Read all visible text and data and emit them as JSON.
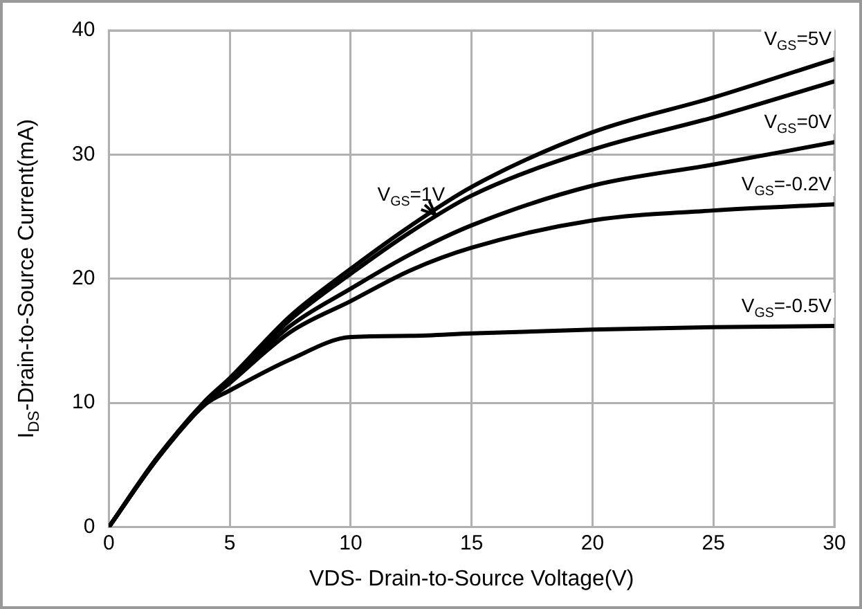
{
  "chart_data": {
    "type": "line",
    "xlabel": "VDS- Drain-to-Source Voltage(V)",
    "ylabel": "I$_{DS}$-Drain-to-Source Current(mA)",
    "x": [
      0,
      2,
      4,
      5,
      7.5,
      10,
      12.5,
      15,
      20,
      25,
      30
    ],
    "series": [
      {
        "name": "V$_{GS}$=5V",
        "color": "#000000",
        "values": [
          0,
          5.6,
          10.2,
          12,
          17,
          20.8,
          24.3,
          27.4,
          31.8,
          34.6,
          37.7
        ]
      },
      {
        "name": "V$_{GS}$=1V",
        "color": "#000000",
        "values": [
          0,
          5.6,
          10.1,
          11.9,
          16.7,
          20.4,
          23.8,
          26.7,
          30.4,
          33,
          35.9
        ]
      },
      {
        "name": "V$_{GS}$=0V",
        "color": "#000000",
        "values": [
          0,
          5.5,
          10,
          11.7,
          16.2,
          19.2,
          22,
          24.3,
          27.5,
          29.2,
          31
        ]
      },
      {
        "name": "V$_{GS}$=-0.2V",
        "color": "#000000",
        "values": [
          0,
          5.5,
          10,
          11.6,
          15.7,
          18.2,
          20.7,
          22.5,
          24.7,
          25.5,
          26
        ]
      },
      {
        "name": "V$_{GS}$=-0.5V",
        "color": "#000000",
        "values": [
          0,
          5.5,
          9.9,
          11,
          13.5,
          15.3,
          15.4,
          15.6,
          15.9,
          16.1,
          16.2
        ]
      }
    ],
    "xlim": [
      0,
      30
    ],
    "xticks": [
      0,
      5,
      10,
      15,
      20,
      25,
      30
    ],
    "ylim": [
      0,
      40
    ],
    "yticks": [
      0,
      10,
      20,
      30,
      40
    ],
    "grid": true,
    "legend": false,
    "marker": "none",
    "line_style": "solid"
  }
}
